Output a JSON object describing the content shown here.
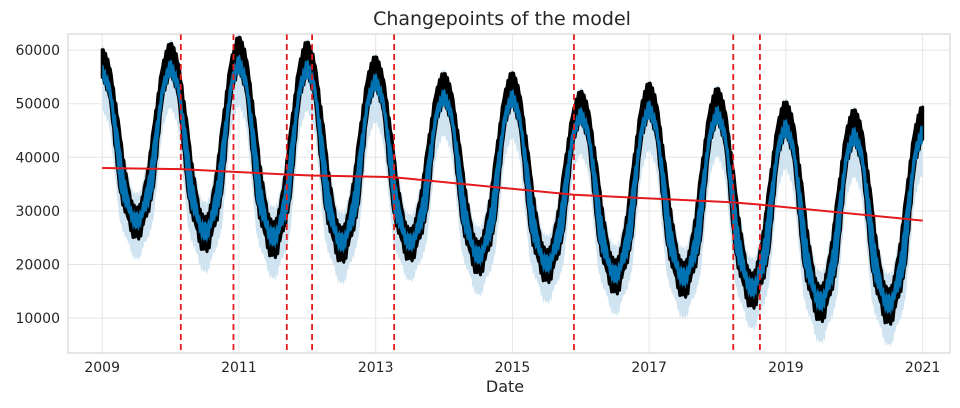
{
  "chart_data": {
    "type": "line",
    "title": "Changepoints of the model",
    "xlabel": "Date",
    "ylabel": "",
    "xlim": [
      2008.5,
      2021.4
    ],
    "ylim": [
      3500,
      63000
    ],
    "xticks": [
      2009,
      2011,
      2013,
      2015,
      2017,
      2019,
      2021
    ],
    "xtick_labels": [
      "2009",
      "2011",
      "2013",
      "2015",
      "2017",
      "2019",
      "2021"
    ],
    "yticks": [
      10000,
      20000,
      30000,
      40000,
      50000,
      60000
    ],
    "ytick_labels": [
      "10000",
      "20000",
      "30000",
      "40000",
      "50000",
      "60000"
    ],
    "grid": true,
    "series": [
      {
        "role": "trend",
        "x": [
          2009.0,
          2010.15,
          2010.9,
          2011.7,
          2012.05,
          2013.25,
          2015.9,
          2018.2,
          2018.6,
          2021.0
        ],
        "y": [
          38000,
          37800,
          37300,
          36800,
          36600,
          36300,
          33000,
          31600,
          31200,
          28200
        ]
      },
      {
        "role": "observed-peaks",
        "x": [
          2009.0,
          2010.0,
          2011.0,
          2012.1,
          2013.0,
          2014.0,
          2015.0,
          2015.9,
          2017.0,
          2018.0,
          2019.0,
          2020.0,
          2021.0
        ],
        "y": [
          58000,
          59000,
          60000,
          59000,
          56500,
          53500,
          53500,
          50000,
          51500,
          50500,
          48000,
          46500,
          47000
        ]
      },
      {
        "role": "observed-troughs",
        "x": [
          2009.5,
          2010.5,
          2011.5,
          2012.5,
          2013.5,
          2014.5,
          2015.5,
          2016.5,
          2017.5,
          2018.5,
          2019.5,
          2020.5
        ],
        "y": [
          28500,
          26500,
          25500,
          24500,
          24500,
          22000,
          20500,
          18500,
          18000,
          16000,
          13500,
          13000
        ]
      }
    ],
    "changepoints": [
      2010.15,
      2010.92,
      2011.7,
      2012.07,
      2013.27,
      2015.9,
      2018.23,
      2018.62
    ],
    "colors": {
      "fit": "#0072B2",
      "uncertainty": "#cfe3f0",
      "observed": "#000000",
      "trend": "#e41a1c",
      "changepoint": "#e41a1c",
      "grid": "#e5e5e5",
      "spine": "#cccccc"
    }
  }
}
